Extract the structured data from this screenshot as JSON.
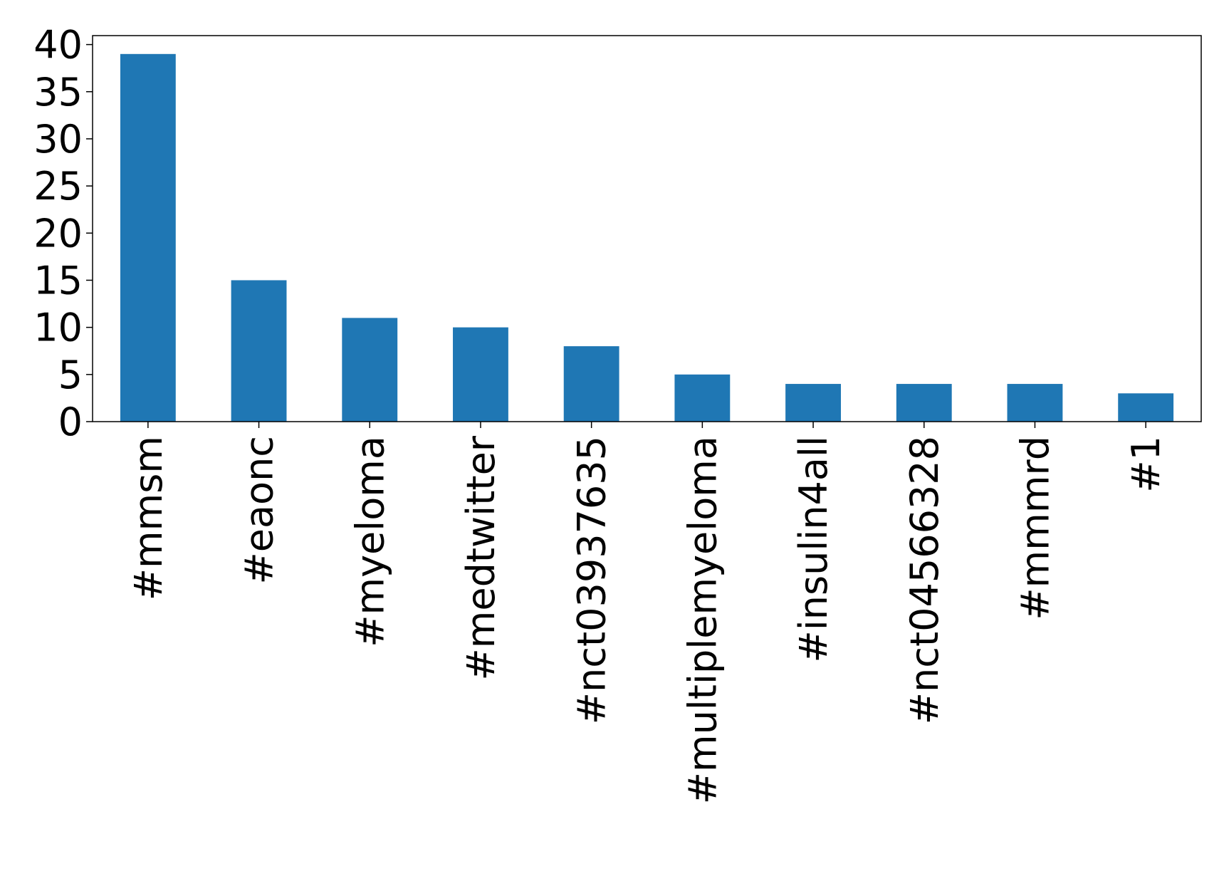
{
  "chart_data": {
    "type": "bar",
    "categories": [
      "#mmsm",
      "#eaonc",
      "#myeloma",
      "#medtwitter",
      "#nct03937635",
      "#multiplemyeloma",
      "#insulin4all",
      "#nct04566328",
      "#mmmrd",
      "#1"
    ],
    "values": [
      39,
      15,
      11,
      10,
      8,
      5,
      4,
      4,
      4,
      3
    ],
    "color": "#1f77b4",
    "ylim": [
      0,
      40.95
    ],
    "yticks": [
      0,
      5,
      10,
      15,
      20,
      25,
      30,
      35,
      40
    ],
    "grid": false
  }
}
